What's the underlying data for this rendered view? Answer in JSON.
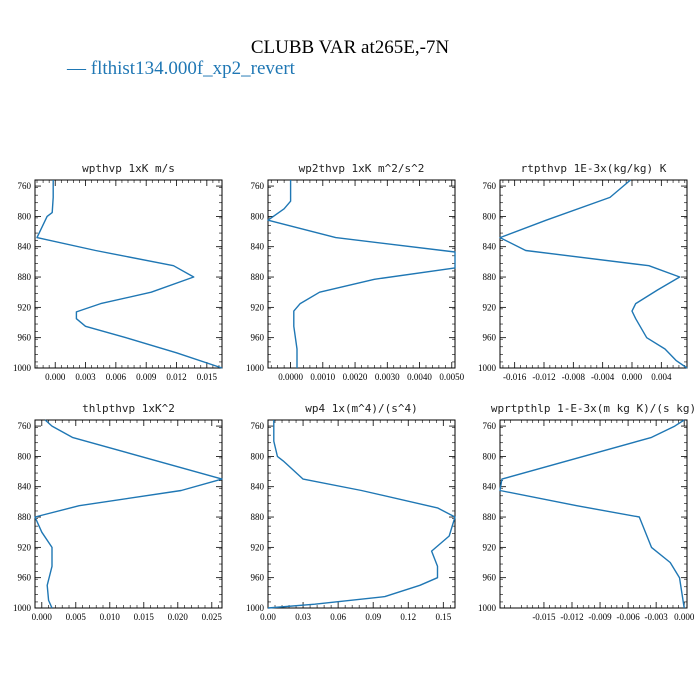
{
  "title": "CLUBB VAR at265E,-7N",
  "legend": {
    "entries": [
      {
        "dash": "—",
        "label": "flthist134.000f_xp2_revert",
        "color": "#1f77b4"
      }
    ]
  },
  "chart_data": [
    {
      "type": "line",
      "title": "wpthvp  1xK m/s",
      "xlim": [
        -0.002,
        0.0165
      ],
      "ylim": [
        1000,
        752
      ],
      "xticks": [
        0.0,
        0.003,
        0.006,
        0.009,
        0.012,
        0.015
      ],
      "xtick_labels": [
        "0.000",
        "0.003",
        "0.006",
        "0.009",
        "0.012",
        "0.015"
      ],
      "yticks": [
        760,
        800,
        840,
        880,
        920,
        960,
        1000
      ],
      "series": [
        {
          "color": "#1f77b4",
          "x": [
            -0.0002,
            -0.0002,
            -0.0003,
            -0.0008,
            -0.0018,
            0.004,
            0.0117,
            0.0137,
            0.0095,
            0.0045,
            0.0021,
            0.0021,
            0.003,
            0.007,
            0.012,
            0.0165
          ],
          "y": [
            752,
            775,
            795,
            800,
            828,
            845,
            865,
            880,
            900,
            915,
            926,
            935,
            945,
            960,
            980,
            1000
          ]
        }
      ]
    },
    {
      "type": "line",
      "title": "wp2thvp  1xK m^2/s^2",
      "xlim": [
        -0.0007,
        0.0051
      ],
      "ylim": [
        1000,
        752
      ],
      "xticks": [
        0.0,
        0.001,
        0.002,
        0.003,
        0.004,
        0.005
      ],
      "xtick_labels": [
        "0.0000",
        "0.0010",
        "0.0020",
        "0.0030",
        "0.0040",
        "0.0050"
      ],
      "yticks": [
        760,
        800,
        840,
        880,
        920,
        960,
        1000
      ],
      "series": [
        {
          "color": "#1f77b4",
          "x": [
            0.0,
            0.0,
            -0.0002,
            -0.0007,
            0.0014,
            0.0051,
            0.0051,
            0.0026,
            0.0009,
            0.0003,
            0.0001,
            0.0001,
            0.0002,
            0.0002
          ],
          "y": [
            752,
            780,
            790,
            805,
            828,
            847,
            868,
            883,
            900,
            915,
            925,
            945,
            975,
            1000
          ]
        }
      ]
    },
    {
      "type": "line",
      "title": "rtpthvp  1E-3x(kg/kg) K",
      "xlim": [
        -0.018,
        0.0075
      ],
      "ylim": [
        1000,
        752
      ],
      "xticks": [
        -0.016,
        -0.012,
        -0.008,
        -0.004,
        0.0,
        0.004
      ],
      "xtick_labels": [
        "-0.016",
        "-0.012",
        "-0.008",
        "-0.004",
        "0.000",
        "0.004"
      ],
      "yticks": [
        760,
        800,
        840,
        880,
        920,
        960,
        1000
      ],
      "series": [
        {
          "color": "#1f77b4",
          "x": [
            -0.0002,
            -0.003,
            -0.0117,
            -0.018,
            -0.0145,
            0.0023,
            0.0065,
            0.0035,
            0.0005,
            0.0,
            0.0005,
            0.002,
            0.0045,
            0.006,
            0.0075
          ],
          "y": [
            752,
            775,
            805,
            828,
            845,
            865,
            880,
            897,
            915,
            925,
            935,
            960,
            975,
            990,
            1000
          ]
        }
      ]
    },
    {
      "type": "line",
      "title": "thlpthvp  1xK^2",
      "xlim": [
        -0.001,
        0.0265
      ],
      "ylim": [
        1000,
        752
      ],
      "xticks": [
        0.0,
        0.005,
        0.01,
        0.015,
        0.02,
        0.025
      ],
      "xtick_labels": [
        "0.000",
        "0.005",
        "0.010",
        "0.015",
        "0.020",
        "0.025"
      ],
      "yticks": [
        760,
        800,
        840,
        880,
        920,
        960,
        1000
      ],
      "series": [
        {
          "color": "#1f77b4",
          "x": [
            0.0005,
            0.0015,
            0.0045,
            0.0265,
            0.0205,
            0.0055,
            -0.001,
            0.0,
            0.0015,
            0.0015,
            0.0008,
            0.001,
            0.0015
          ],
          "y": [
            752,
            760,
            775,
            830,
            845,
            865,
            880,
            900,
            920,
            945,
            970,
            990,
            1000
          ]
        }
      ]
    },
    {
      "type": "line",
      "title": "wp4  1x(m^4)/(s^4)",
      "xlim": [
        0.0,
        0.16
      ],
      "ylim": [
        1000,
        752
      ],
      "xticks": [
        0.0,
        0.03,
        0.06,
        0.09,
        0.12,
        0.15
      ],
      "xtick_labels": [
        "0.00",
        "0.03",
        "0.06",
        "0.09",
        "0.12",
        "0.15"
      ],
      "yticks": [
        760,
        800,
        840,
        880,
        920,
        960,
        1000
      ],
      "series": [
        {
          "color": "#1f77b4",
          "x": [
            0.005,
            0.005,
            0.008,
            0.013,
            0.03,
            0.08,
            0.145,
            0.16,
            0.155,
            0.14,
            0.145,
            0.145,
            0.13,
            0.1,
            0.04,
            0.0
          ],
          "y": [
            752,
            780,
            800,
            806,
            830,
            845,
            868,
            880,
            905,
            925,
            945,
            960,
            970,
            985,
            995,
            1000
          ]
        }
      ]
    },
    {
      "type": "line",
      "title": "wprtpthlp  1-E-3x(m kg K)/(s kg)",
      "xlim": [
        -0.0197,
        0.0003
      ],
      "ylim": [
        1000,
        752
      ],
      "xticks": [
        -0.015,
        -0.012,
        -0.009,
        -0.006,
        -0.003,
        0.0
      ],
      "xtick_labels": [
        "-0.015",
        "-0.012",
        "-0.009",
        "-0.006",
        "-0.003",
        "0.000"
      ],
      "yticks": [
        760,
        800,
        840,
        880,
        920,
        960,
        1000
      ],
      "series": [
        {
          "color": "#1f77b4",
          "x": [
            0.0,
            -0.001,
            -0.0035,
            -0.0195,
            -0.0197,
            -0.0115,
            -0.0048,
            -0.0035,
            -0.0015,
            -0.0005,
            0.0
          ],
          "y": [
            752,
            760,
            775,
            830,
            845,
            865,
            880,
            920,
            940,
            960,
            1000
          ]
        }
      ]
    }
  ]
}
